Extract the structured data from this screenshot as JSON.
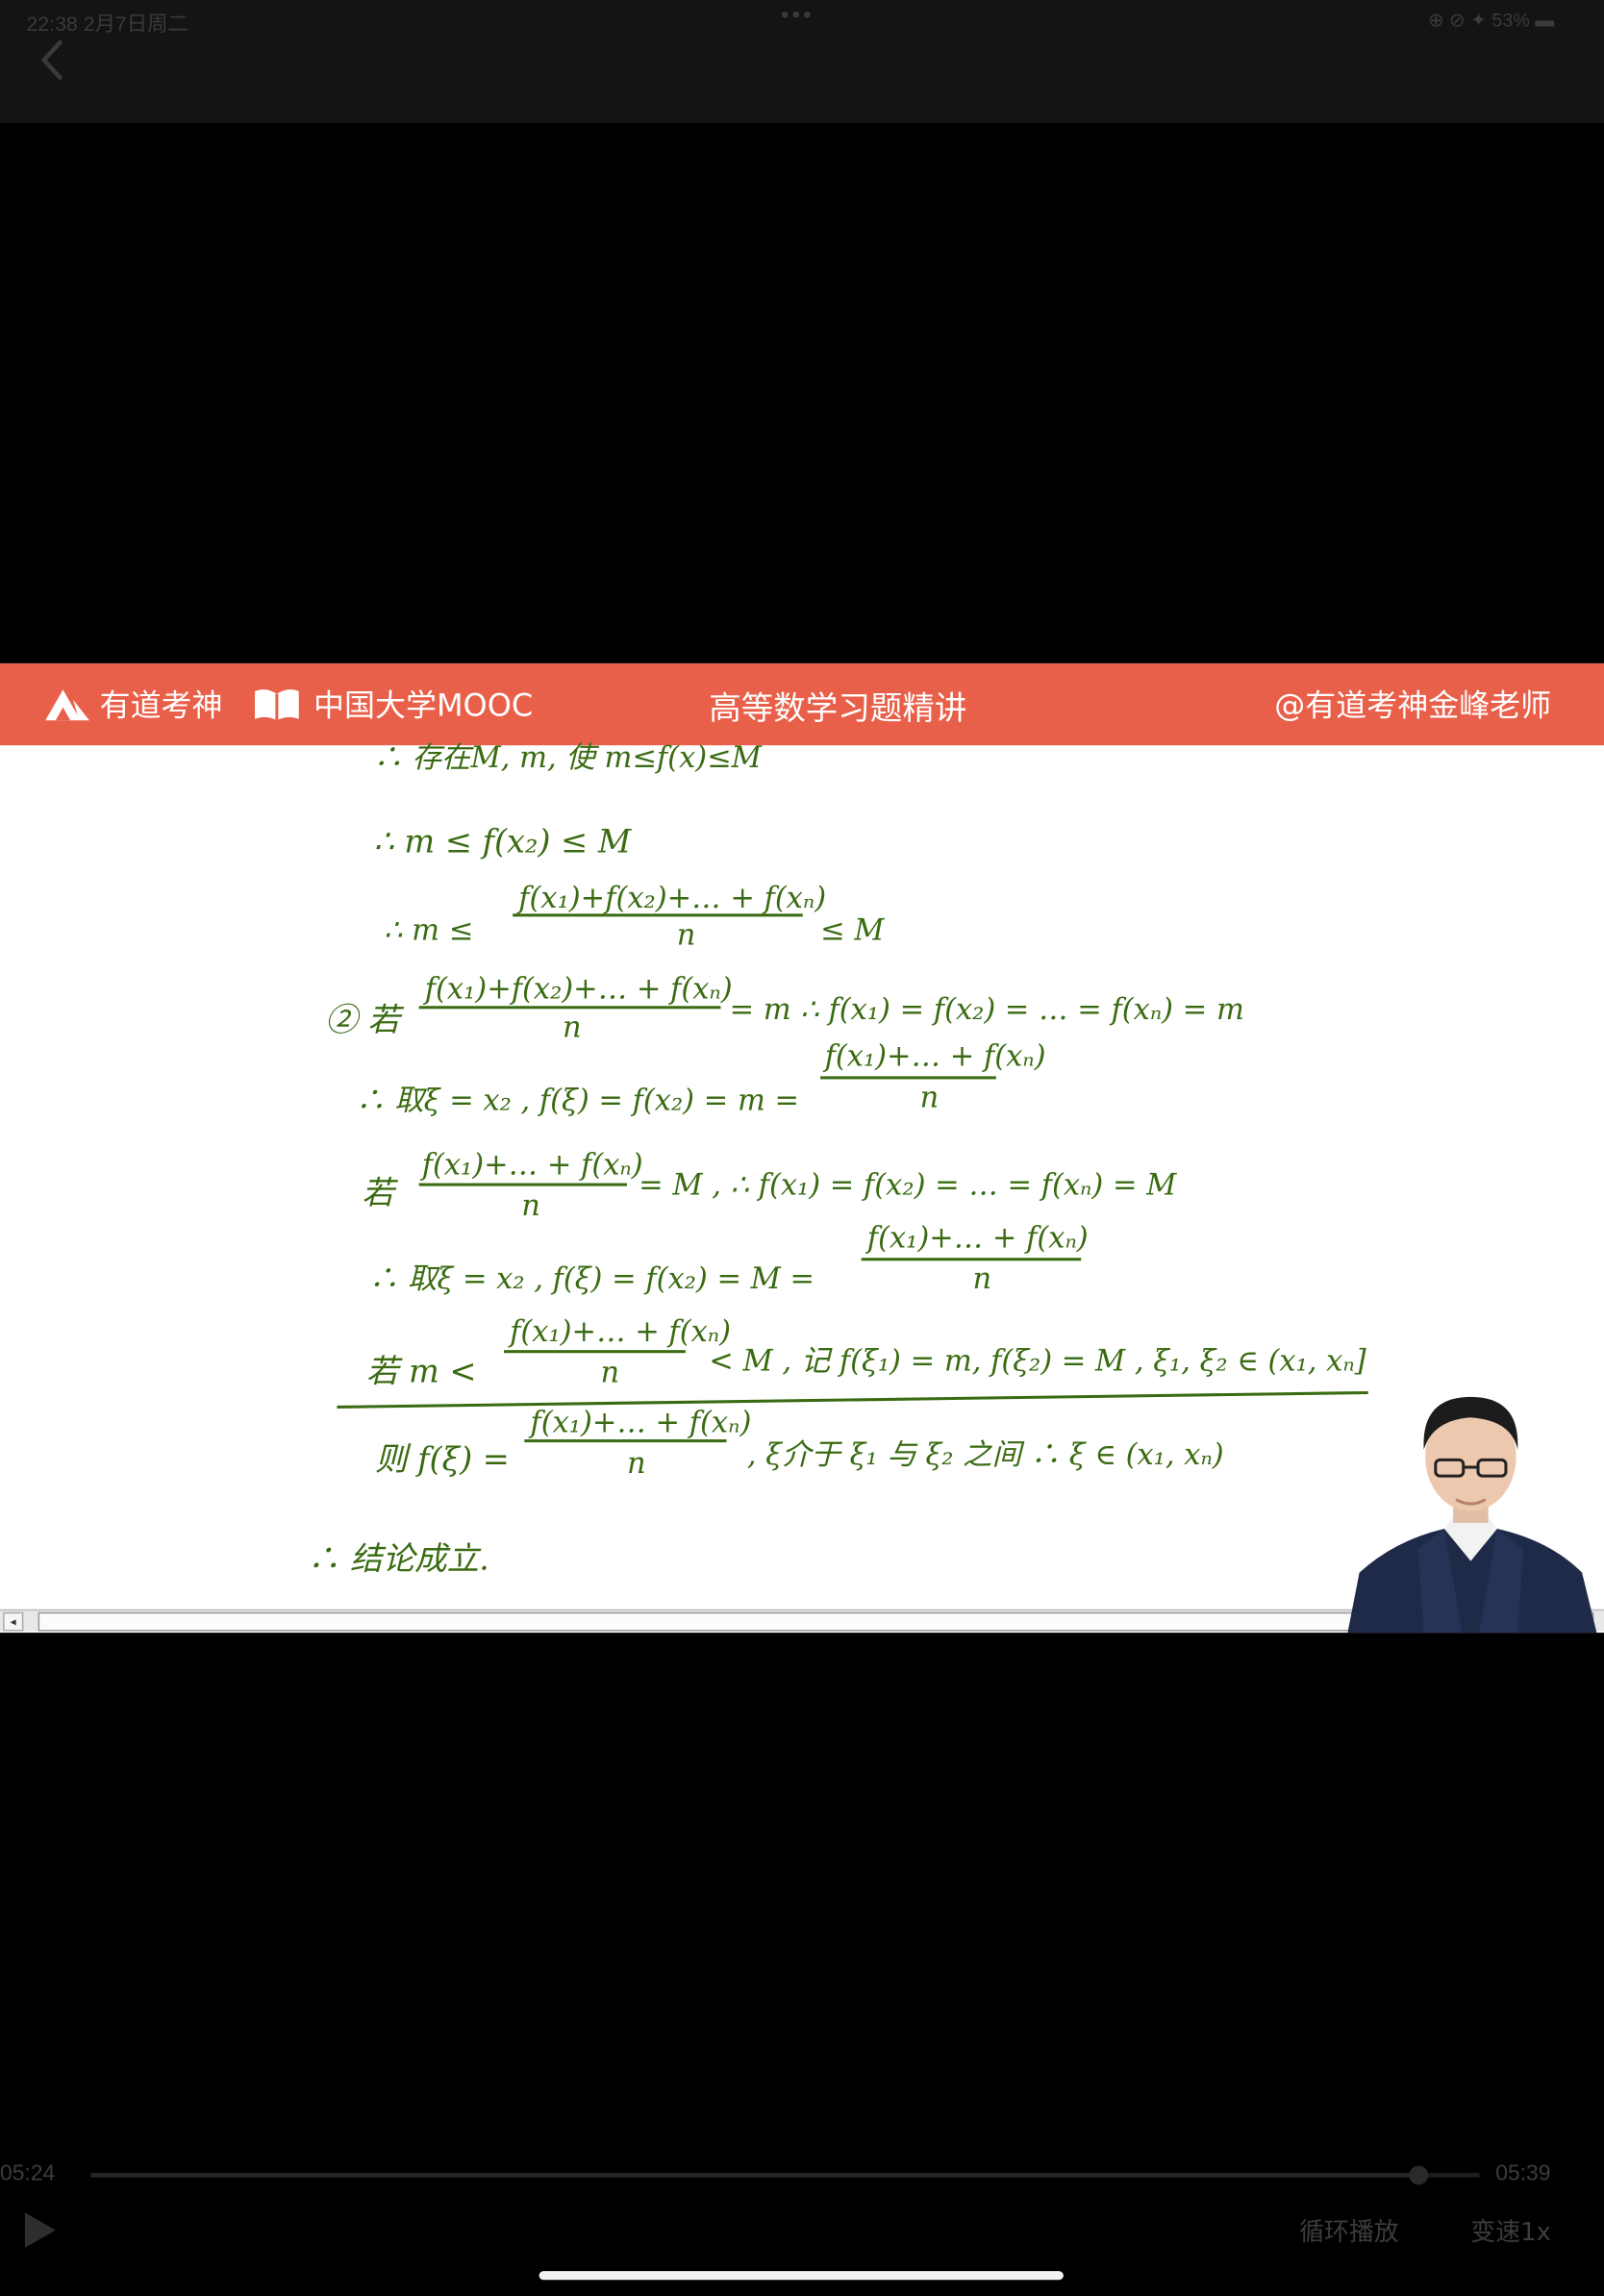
{
  "status_bar": {
    "time": "22:38  2月7日周二",
    "dots": "•••",
    "right": "⊕ ⊘ ✦ 53% ▬"
  },
  "banner": {
    "brand1": "有道考神",
    "brand2": "中国大学MOOC",
    "course_title": "高等数学习题精讲",
    "channel": "@有道考神金峰老师"
  },
  "board": {
    "lines": [
      "∴ 存在M, m, 使 m≤f(x)≤M",
      "∴  m ≤ f(x₂) ≤ M",
      "∴  m ≤",
      "f(x₁)+f(x₂)+… + f(xₙ)",
      "n",
      "≤ M",
      "② 若",
      "f(x₁)+f(x₂)+… + f(xₙ)",
      "n",
      "= m   ∴ f(x₁) = f(x₂) = … = f(xₙ) = m",
      "∴ 取ξ = x₂ ,  f(ξ) = f(x₂) = m =",
      "f(x₁)+… + f(xₙ)",
      "n",
      "若",
      "f(x₁)+… + f(xₙ)",
      "n",
      "= M ,   ∴ f(x₁) = f(x₂) = … = f(xₙ) = M",
      "∴ 取ξ = x₂ ,  f(ξ) = f(x₂) = M =",
      "f(x₁)+… + f(xₙ)",
      "n",
      "若  m <",
      "f(x₁)+… + f(xₙ)",
      "n",
      "< M  , 记 f(ξ₁) = m,  f(ξ₂) = M ,  ξ₁, ξ₂ ∈ (x₁, xₙ]",
      "则 f(ξ) =",
      "f(x₁)+… + f(xₙ)",
      "n",
      ",  ξ介于 ξ₁ 与 ξ₂ 之间  ∴ ξ ∈ (x₁, xₙ)",
      "∴ 结论成立."
    ]
  },
  "player": {
    "current_time": "05:24",
    "total_time": "05:39",
    "progress": 0.956,
    "loop_label": "循环播放",
    "speed_label": "变速1x"
  },
  "colors": {
    "banner": "#e9604a",
    "ink": "#3a6b12"
  }
}
